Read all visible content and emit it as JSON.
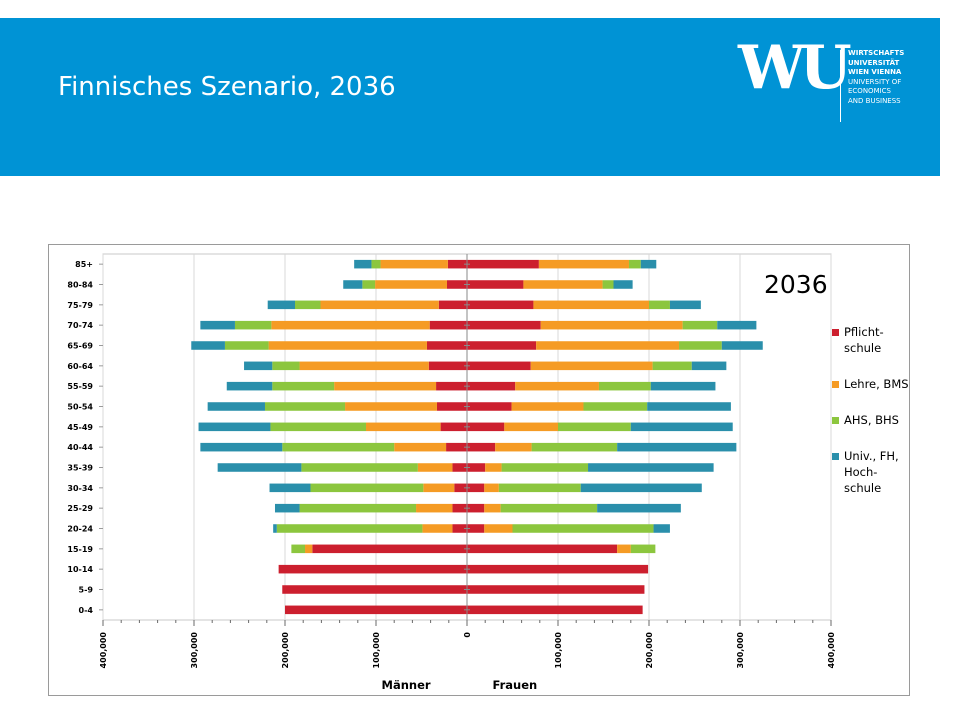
{
  "header": {
    "title": "Finnisches Szenario, 2036",
    "logo": {
      "mark": "WU",
      "lines": [
        "WIRTSCHAFTS",
        "UNIVERSITÄT",
        "WIEN VIENNA",
        "UNIVERSITY OF",
        "ECONOMICS",
        "AND BUSINESS"
      ],
      "bold_lines": 3
    },
    "background_color": "#0093d5"
  },
  "year_label": "2036",
  "chart_data": {
    "type": "bar",
    "orientation": "horizontal-stacked-diverging",
    "categories": [
      "0-4",
      "5-9",
      "10-14",
      "15-19",
      "20-24",
      "25-29",
      "30-34",
      "35-39",
      "40-44",
      "45-49",
      "50-54",
      "55-59",
      "60-64",
      "65-69",
      "70-74",
      "75-79",
      "80-84",
      "85+"
    ],
    "series_colors": [
      "#cc1f2e",
      "#f59b24",
      "#8cc63e",
      "#2a8fab"
    ],
    "legend": [
      {
        "lines": [
          "Pflicht-",
          "schule"
        ],
        "color": "#cc1f2e"
      },
      {
        "lines": [
          "Lehre, BMS"
        ],
        "color": "#f59b24"
      },
      {
        "lines": [
          "AHS, BHS"
        ],
        "color": "#8cc63e"
      },
      {
        "lines": [
          "Univ., FH,",
          "Hoch-",
          "schule"
        ],
        "color": "#2a8fab"
      }
    ],
    "legend_position": "right",
    "men": {
      "name": "Männer",
      "values": [
        [
          200000,
          0,
          0,
          0
        ],
        [
          203000,
          0,
          0,
          0
        ],
        [
          207000,
          0,
          0,
          0
        ],
        [
          170000,
          8000,
          15000,
          0
        ],
        [
          16000,
          33000,
          160000,
          4000
        ],
        [
          16000,
          40000,
          128000,
          27000
        ],
        [
          14000,
          34000,
          124000,
          45000
        ],
        [
          16000,
          38000,
          128000,
          92000
        ],
        [
          23000,
          57000,
          123000,
          90000
        ],
        [
          29000,
          82000,
          105000,
          79000
        ],
        [
          33000,
          101000,
          88000,
          63000
        ],
        [
          34000,
          112000,
          68000,
          50000
        ],
        [
          42000,
          142000,
          30000,
          31000
        ],
        [
          44000,
          174000,
          48000,
          37000
        ],
        [
          41000,
          174000,
          40000,
          38000
        ],
        [
          31000,
          130000,
          28000,
          30000
        ],
        [
          22000,
          79000,
          14000,
          21000
        ],
        [
          21000,
          74000,
          10000,
          19000
        ]
      ]
    },
    "women": {
      "name": "Frauen",
      "values": [
        [
          193000,
          0,
          0,
          0
        ],
        [
          195000,
          0,
          0,
          0
        ],
        [
          199000,
          0,
          0,
          0
        ],
        [
          165000,
          15000,
          27000,
          0
        ],
        [
          19000,
          31000,
          155000,
          18000
        ],
        [
          19000,
          18000,
          106000,
          92000
        ],
        [
          19000,
          16000,
          90000,
          133000
        ],
        [
          20000,
          18000,
          95000,
          138000
        ],
        [
          31000,
          40000,
          94000,
          131000
        ],
        [
          41000,
          59000,
          80000,
          112000
        ],
        [
          49000,
          79000,
          70000,
          92000
        ],
        [
          53000,
          92000,
          57000,
          71000
        ],
        [
          70000,
          134000,
          43000,
          38000
        ],
        [
          76000,
          157000,
          47000,
          45000
        ],
        [
          81000,
          156000,
          38000,
          43000
        ],
        [
          73000,
          127000,
          23000,
          34000
        ],
        [
          62000,
          87000,
          12000,
          21000
        ],
        [
          79000,
          99000,
          13000,
          17000
        ]
      ]
    },
    "x_ticks": [
      "400,000",
      "300,000",
      "200,000",
      "100,000",
      "0",
      "100,000",
      "200,000",
      "300,000",
      "400,000"
    ],
    "x_range": [
      -400000,
      400000
    ],
    "x_group_labels": [
      "Männer",
      "Frauen"
    ],
    "grid": true
  }
}
